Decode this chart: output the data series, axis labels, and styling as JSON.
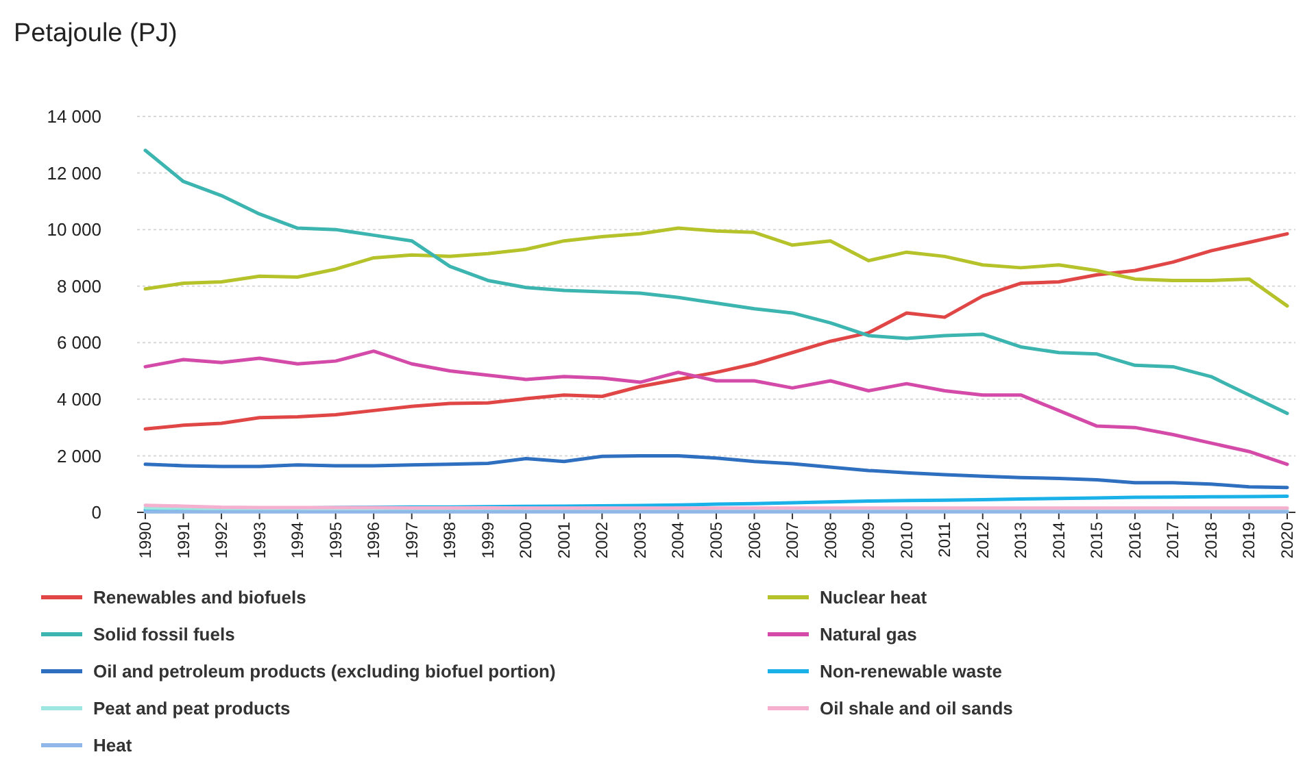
{
  "chart_data": {
    "type": "line",
    "ylabel": "Petajoule (PJ)",
    "categories": [
      "1990",
      "1991",
      "1992",
      "1993",
      "1994",
      "1995",
      "1996",
      "1997",
      "1998",
      "1999",
      "2000",
      "2001",
      "2002",
      "2003",
      "2004",
      "2005",
      "2006",
      "2007",
      "2008",
      "2009",
      "2010",
      "2011",
      "2012",
      "2013",
      "2014",
      "2015",
      "2016",
      "2017",
      "2018",
      "2019",
      "2020"
    ],
    "ylim": [
      0,
      14000
    ],
    "yticks": [
      0,
      {
        "value": 2000,
        "label": "2 000"
      },
      {
        "value": 4000,
        "label": "4 000"
      },
      {
        "value": 6000,
        "label": "6 000"
      },
      {
        "value": 8000,
        "label": "8 000"
      },
      {
        "value": 10000,
        "label": "10 000"
      },
      {
        "value": 12000,
        "label": "12 000"
      },
      {
        "value": 14000,
        "label": "14 000"
      }
    ],
    "grid": "y",
    "legend": "bottom",
    "marker": "none",
    "line_style": "solid",
    "series": [
      {
        "name": "Renewables and biofuels",
        "color": "#e04646",
        "values": [
          2950,
          3080,
          3150,
          3350,
          3380,
          3450,
          3600,
          3750,
          3850,
          3870,
          4020,
          4150,
          4100,
          4450,
          4700,
          4950,
          5250,
          5650,
          6050,
          6350,
          7050,
          6900,
          7650,
          8100,
          8150,
          8400,
          8550,
          8850,
          9250,
          9550,
          9850
        ]
      },
      {
        "name": "Nuclear heat",
        "color": "#b5c22a",
        "values": [
          7900,
          8100,
          8150,
          8350,
          8320,
          8600,
          9000,
          9100,
          9050,
          9150,
          9300,
          9600,
          9750,
          9850,
          10050,
          9950,
          9900,
          9450,
          9600,
          8900,
          9200,
          9050,
          8750,
          8650,
          8750,
          8550,
          8250,
          8200,
          8200,
          8250,
          7300
        ]
      },
      {
        "name": "Solid fossil fuels",
        "color": "#3cb5b0",
        "values": [
          12800,
          11700,
          11200,
          10550,
          10050,
          10000,
          9800,
          9600,
          8700,
          8200,
          7950,
          7850,
          7800,
          7750,
          7600,
          7400,
          7200,
          7050,
          6700,
          6250,
          6150,
          6250,
          6300,
          5850,
          5650,
          5600,
          5200,
          5150,
          4800,
          4150,
          3500
        ]
      },
      {
        "name": "Natural gas",
        "color": "#d44aa8",
        "values": [
          5150,
          5400,
          5300,
          5450,
          5250,
          5350,
          5700,
          5250,
          5000,
          4850,
          4700,
          4800,
          4750,
          4600,
          4950,
          4650,
          4650,
          4400,
          4650,
          4300,
          4550,
          4300,
          4150,
          4150,
          3600,
          3050,
          3000,
          2750,
          2450,
          2150,
          1700
        ]
      },
      {
        "name": "Oil and petroleum products (excluding biofuel portion)",
        "color": "#2e6fc0",
        "values": [
          1700,
          1650,
          1620,
          1620,
          1680,
          1650,
          1650,
          1680,
          1700,
          1730,
          1900,
          1800,
          1980,
          2000,
          2000,
          1920,
          1800,
          1720,
          1600,
          1480,
          1400,
          1330,
          1280,
          1230,
          1200,
          1150,
          1050,
          1050,
          1000,
          900,
          880
        ]
      },
      {
        "name": "Non-renewable waste",
        "color": "#1ab0e8",
        "values": [
          80,
          80,
          100,
          120,
          150,
          170,
          180,
          190,
          190,
          200,
          210,
          220,
          230,
          240,
          260,
          290,
          310,
          340,
          370,
          400,
          420,
          430,
          450,
          470,
          490,
          510,
          530,
          540,
          550,
          560,
          570
        ]
      },
      {
        "name": "Peat and peat products",
        "color": "#9ee6e0",
        "values": [
          150,
          140,
          130,
          130,
          140,
          140,
          140,
          130,
          120,
          120,
          110,
          110,
          110,
          100,
          100,
          100,
          90,
          90,
          90,
          80,
          80,
          80,
          80,
          70,
          70,
          70,
          60,
          60,
          60,
          50,
          50
        ]
      },
      {
        "name": "Oil shale and oil sands",
        "color": "#f5b0d0",
        "values": [
          250,
          220,
          180,
          170,
          170,
          170,
          170,
          160,
          160,
          160,
          150,
          150,
          150,
          150,
          150,
          150,
          150,
          150,
          150,
          150,
          150,
          150,
          150,
          150,
          150,
          150,
          150,
          150,
          150,
          150,
          150
        ]
      },
      {
        "name": "Heat",
        "color": "#8fb8e8",
        "values": [
          20,
          20,
          20,
          20,
          20,
          20,
          20,
          20,
          20,
          20,
          20,
          20,
          20,
          20,
          20,
          20,
          20,
          20,
          20,
          20,
          20,
          20,
          20,
          20,
          20,
          20,
          20,
          20,
          20,
          20,
          20
        ]
      }
    ]
  }
}
